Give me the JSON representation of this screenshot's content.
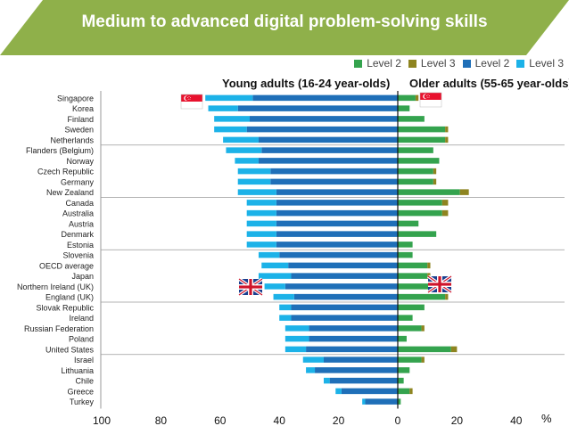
{
  "title": "Medium to advanced digital problem-solving skills",
  "colors": {
    "banner": "#8fb04a",
    "young_level2": "#1f6fb8",
    "young_level3": "#1cb2e8",
    "older_level2": "#34a34e",
    "older_level3": "#8e8420"
  },
  "legend": [
    {
      "label": "Level 2",
      "color": "#34a34e"
    },
    {
      "label": "Level 3",
      "color": "#8e8420"
    },
    {
      "label": "Level 2",
      "color": "#1f6fb8"
    },
    {
      "label": "Level 3",
      "color": "#1cb2e8"
    }
  ],
  "panel_titles": {
    "young": "Young adults (16-24 year-olds)",
    "older": "Older adults (55-65 year-olds)"
  },
  "percent_label": "%",
  "chart_data": {
    "type": "bar",
    "orientation": "horizontal-diverging",
    "categories": [
      "Singapore",
      "Korea",
      "Finland",
      "Sweden",
      "Netherlands",
      "Flanders (Belgium)",
      "Norway",
      "Czech Republic",
      "Germany",
      "New Zealand",
      "Canada",
      "Australia",
      "Austria",
      "Denmark",
      "Estonia",
      "Slovenia",
      "OECD average",
      "Japan",
      "Northern Ireland (UK)",
      "England (UK)",
      "Slovak Republic",
      "Ireland",
      "Russian Federation",
      "Poland",
      "United States",
      "Israel",
      "Lithuania",
      "Chile",
      "Greece",
      "Turkey"
    ],
    "series": [
      {
        "name": "Level 2",
        "side": "young",
        "values": [
          49,
          54,
          50,
          51,
          47,
          46,
          47,
          43,
          43,
          41,
          41,
          41,
          41,
          41,
          41,
          40,
          37,
          36,
          38,
          35,
          36,
          36,
          30,
          30,
          31,
          25,
          28,
          23,
          19,
          11
        ]
      },
      {
        "name": "Level 3",
        "side": "young",
        "values": [
          16,
          10,
          12,
          11,
          12,
          12,
          8,
          11,
          11,
          13,
          10,
          10,
          10,
          10,
          10,
          7,
          9,
          11,
          7,
          7,
          4,
          4,
          8,
          8,
          7,
          7,
          3,
          2,
          2,
          1
        ]
      },
      {
        "name": "Level 2",
        "side": "older",
        "values": [
          6,
          4,
          9,
          16,
          16,
          12,
          14,
          12,
          12,
          21,
          15,
          15,
          7,
          13,
          5,
          5,
          10,
          10,
          11,
          16,
          9,
          5,
          8,
          3,
          18,
          8,
          4,
          2,
          4,
          1
        ]
      },
      {
        "name": "Level 3",
        "side": "older",
        "values": [
          1,
          0,
          0,
          1,
          1,
          0,
          0,
          1,
          1,
          3,
          2,
          2,
          0,
          0,
          0,
          0,
          1,
          1,
          1,
          1,
          0,
          0,
          1,
          0,
          2,
          1,
          0,
          0,
          1,
          0
        ]
      }
    ],
    "xticks": [
      "100",
      "80",
      "60",
      "40",
      "20",
      "0",
      "20",
      "40"
    ],
    "xlim": [
      -100,
      45
    ],
    "group_separators_after": [
      "Netherlands",
      "New Zealand",
      "Estonia",
      "England (UK)",
      "United States"
    ],
    "flags": [
      {
        "country": "Singapore",
        "icon": "singapore-flag-icon"
      },
      {
        "country": "Northern Ireland (UK)",
        "icon": "uk-flag-icon"
      }
    ]
  }
}
